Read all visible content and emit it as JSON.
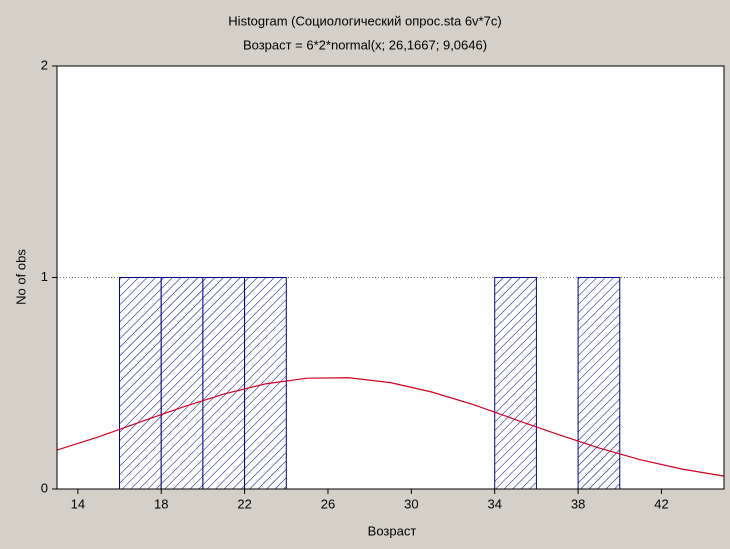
{
  "chart_data": {
    "type": "histogram",
    "title": "Histogram (Социологический опрос.sta 6v*7c)",
    "subtitle": "Возраст = 6*2*normal(x; 26,1667; 9,0646)",
    "x_label": "Возраст",
    "y_label": "No of obs",
    "bins": [
      16,
      18,
      20,
      22,
      24,
      26,
      28,
      30,
      32,
      34,
      36,
      38,
      40
    ],
    "values": [
      1,
      1,
      1,
      1,
      0,
      0,
      0,
      0,
      0,
      1,
      0,
      1
    ],
    "color": "#00008b",
    "curve": {
      "color": "#d00020",
      "x": [
        13,
        15,
        17,
        19,
        21,
        23,
        25,
        27,
        29,
        31,
        33,
        35,
        37,
        39,
        41,
        43,
        45
      ],
      "values": [
        0.184,
        0.247,
        0.317,
        0.386,
        0.449,
        0.497,
        0.524,
        0.526,
        0.503,
        0.458,
        0.398,
        0.328,
        0.259,
        0.194,
        0.138,
        0.094,
        0.061
      ]
    },
    "xlim": [
      13,
      45
    ],
    "xticks": [
      14,
      18,
      22,
      26,
      30,
      34,
      38,
      42
    ],
    "ylim": [
      0,
      2
    ],
    "yticks": [
      0,
      1,
      2
    ],
    "grid": true
  }
}
